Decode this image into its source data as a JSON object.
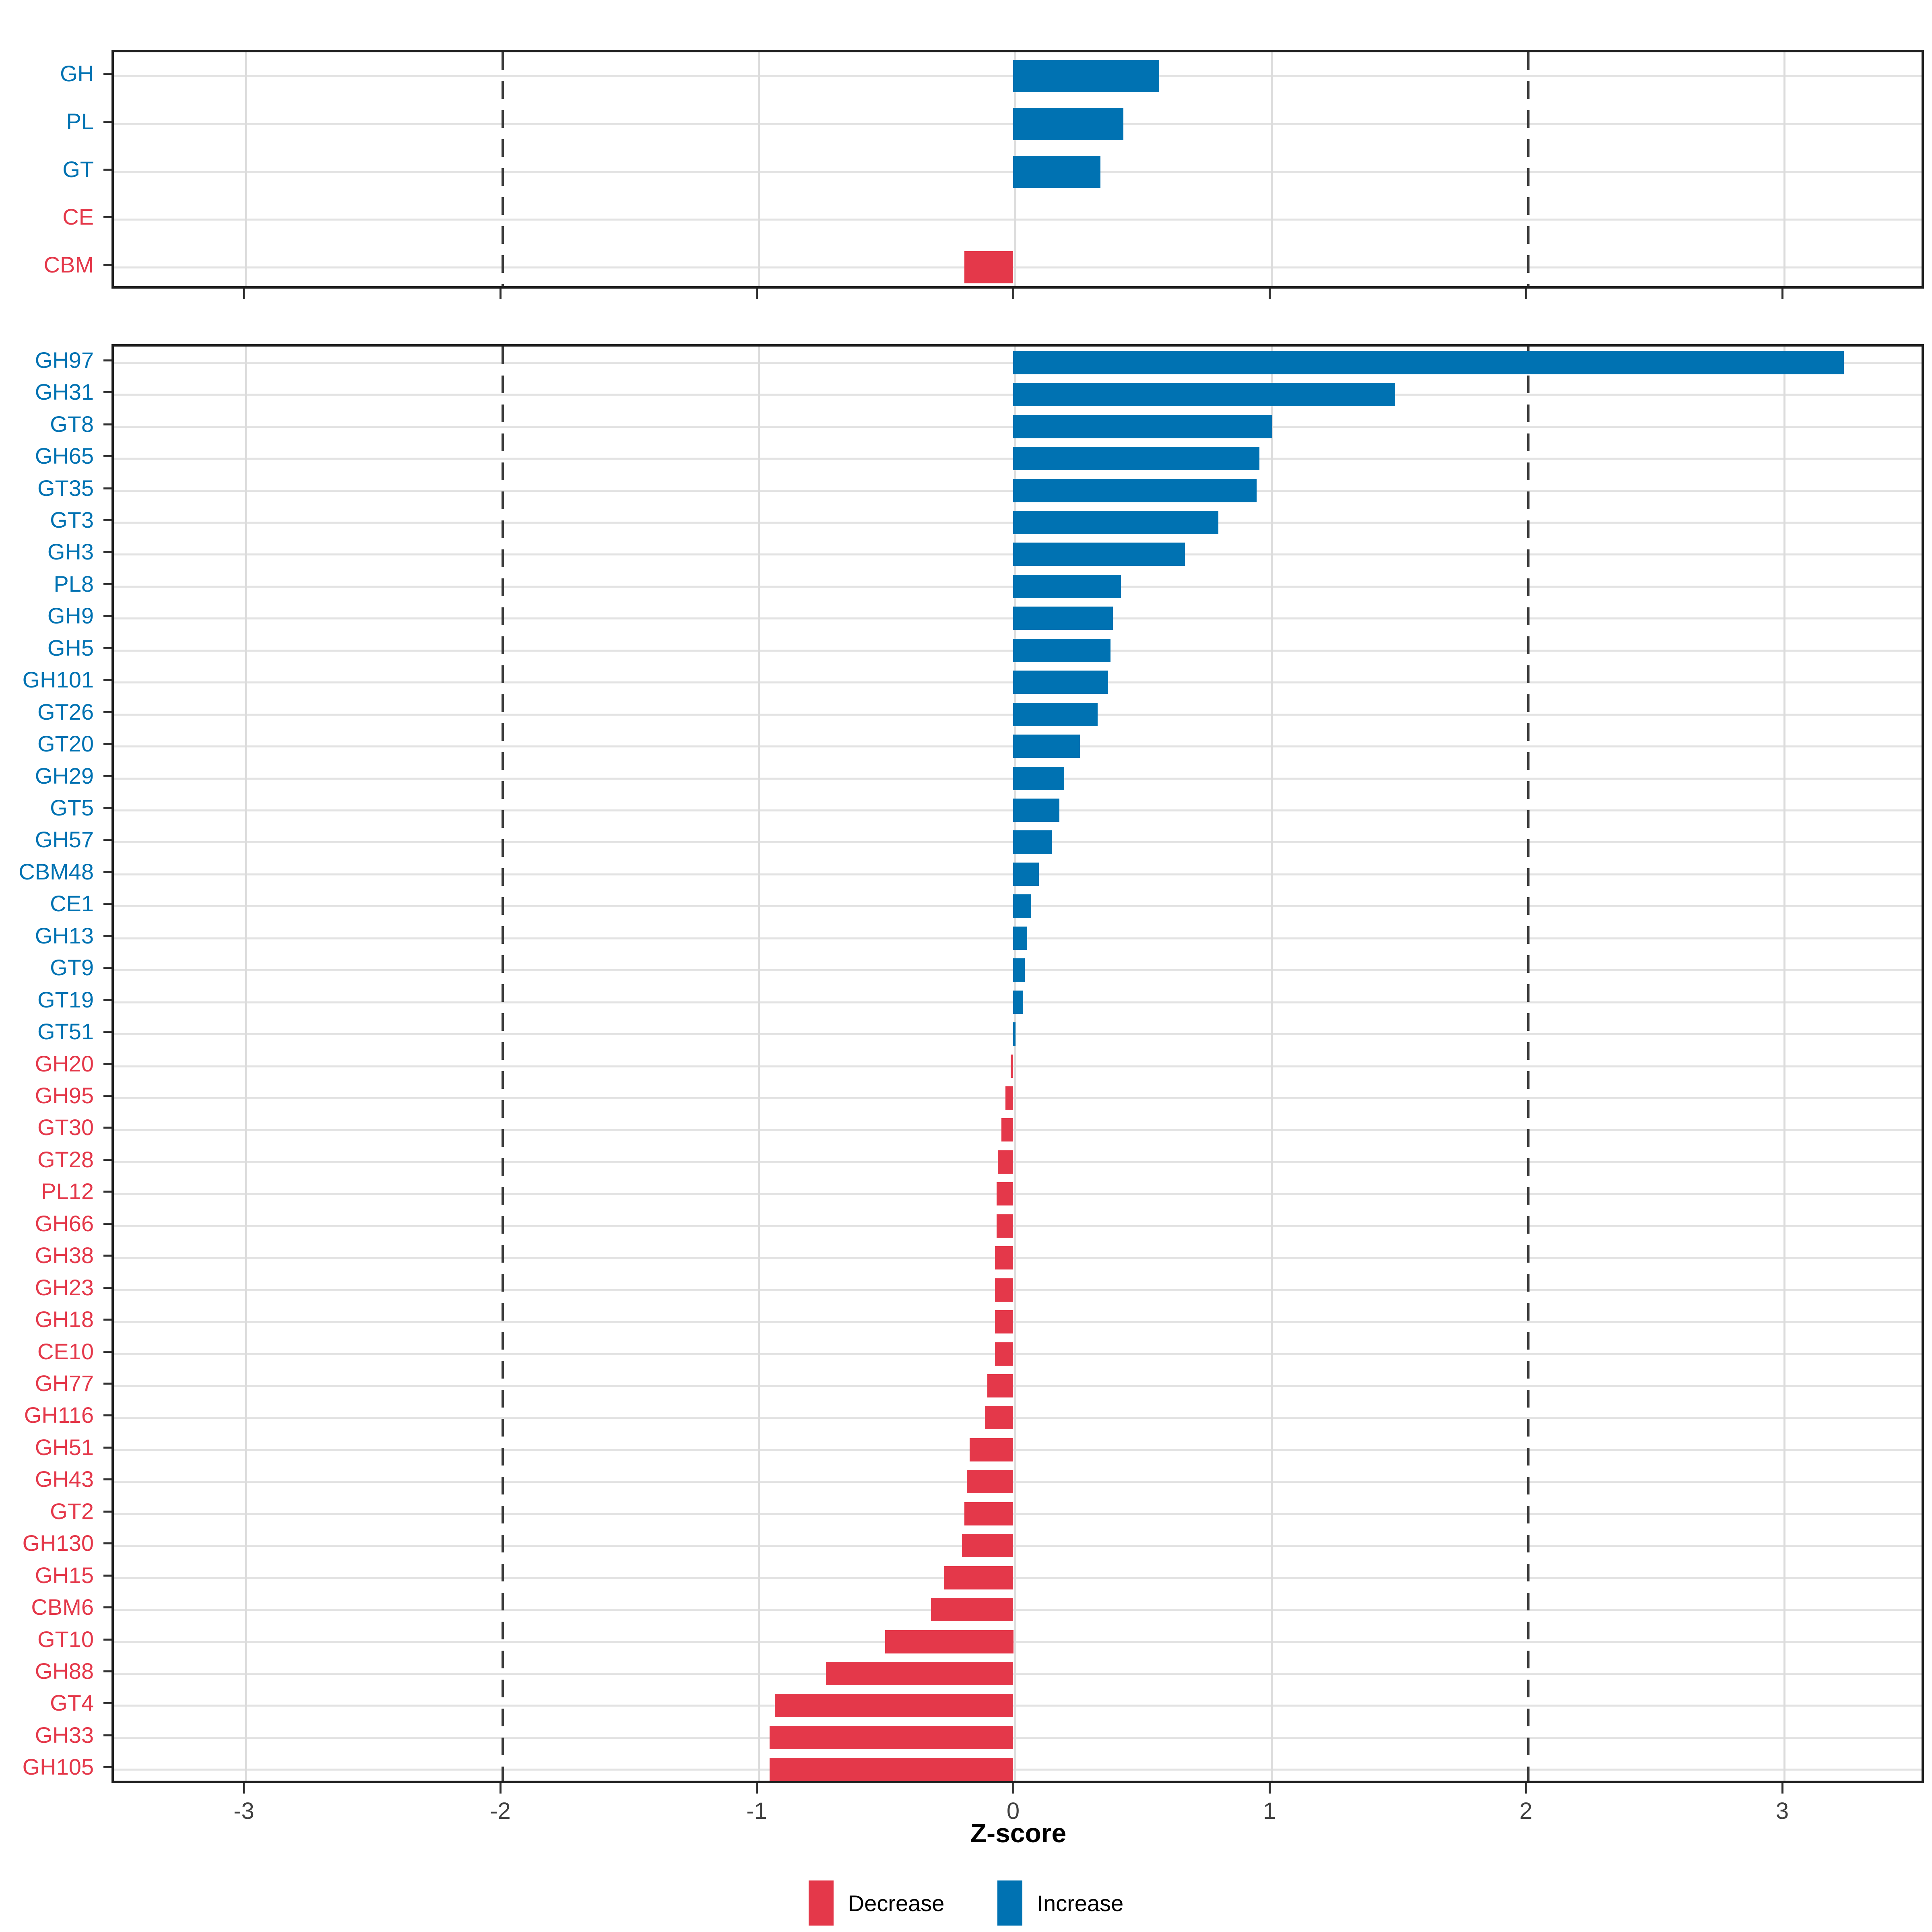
{
  "ui": {
    "xlabel": "Z-score",
    "legend_decrease": "Decrease",
    "legend_increase": "Increase"
  },
  "colors": {
    "increase": "#0072b2",
    "decrease": "#e4384a",
    "grid_light": "#dcdcdc",
    "grid_row": "#e3e3e3",
    "grid_dashed": "#3d3d3d",
    "panel_border": "#1f1f1f",
    "tick": "#333333",
    "tick_label": "#404040",
    "axis_title": "#000000"
  },
  "chart_data": [
    {
      "type": "bar",
      "panel": "cazyme-classes",
      "orientation": "horizontal",
      "categories": [
        "GH",
        "PL",
        "GT",
        "CE",
        "CBM"
      ],
      "values": [
        0.57,
        0.43,
        0.34,
        0,
        -0.19
      ],
      "directions": [
        "increase",
        "increase",
        "increase",
        "decrease",
        "decrease"
      ],
      "xlabel": "Z-score",
      "xlim": [
        -3.51,
        3.55
      ],
      "xticks": [
        -3,
        -2,
        -1,
        0,
        1,
        2,
        3
      ],
      "dashed_gridlines": [
        -2,
        2
      ],
      "grid": true,
      "legend_position": "bottom"
    },
    {
      "type": "bar",
      "panel": "cazyme-families",
      "orientation": "horizontal",
      "categories": [
        "GH97",
        "GH31",
        "GT8",
        "GH65",
        "GT35",
        "GT3",
        "GH3",
        "PL8",
        "GH9",
        "GH5",
        "GH101",
        "GT26",
        "GT20",
        "GH29",
        "GT5",
        "GH57",
        "CBM48",
        "CE1",
        "GH13",
        "GT9",
        "GT19",
        "GT51",
        "GH20",
        "GH95",
        "GT30",
        "GT28",
        "PL12",
        "GH66",
        "GH38",
        "GH23",
        "GH18",
        "CE10",
        "GH77",
        "GH116",
        "GH51",
        "GH43",
        "GT2",
        "GH130",
        "GH15",
        "CBM6",
        "GT10",
        "GH88",
        "GT4",
        "GH33",
        "GH105"
      ],
      "values": [
        3.24,
        1.49,
        1.01,
        0.96,
        0.95,
        0.8,
        0.67,
        0.42,
        0.39,
        0.38,
        0.37,
        0.33,
        0.26,
        0.2,
        0.18,
        0.15,
        0.1,
        0.07,
        0.055,
        0.045,
        0.04,
        0.01,
        -0.01,
        -0.03,
        -0.045,
        -0.06,
        -0.065,
        -0.065,
        -0.07,
        -0.07,
        -0.07,
        -0.07,
        -0.1,
        -0.11,
        -0.17,
        -0.18,
        -0.19,
        -0.2,
        -0.27,
        -0.32,
        -0.5,
        -0.73,
        -0.93,
        -0.95,
        -0.95
      ],
      "directions": [
        "increase",
        "increase",
        "increase",
        "increase",
        "increase",
        "increase",
        "increase",
        "increase",
        "increase",
        "increase",
        "increase",
        "increase",
        "increase",
        "increase",
        "increase",
        "increase",
        "increase",
        "increase",
        "increase",
        "increase",
        "increase",
        "increase",
        "decrease",
        "decrease",
        "decrease",
        "decrease",
        "decrease",
        "decrease",
        "decrease",
        "decrease",
        "decrease",
        "decrease",
        "decrease",
        "decrease",
        "decrease",
        "decrease",
        "decrease",
        "decrease",
        "decrease",
        "decrease",
        "decrease",
        "decrease",
        "decrease",
        "decrease",
        "decrease"
      ],
      "xlabel": "Z-score",
      "xlim": [
        -3.51,
        3.55
      ],
      "xticks": [
        -3,
        -2,
        -1,
        0,
        1,
        2,
        3
      ],
      "dashed_gridlines": [
        -2,
        2
      ],
      "grid": true,
      "legend_position": "bottom"
    }
  ]
}
